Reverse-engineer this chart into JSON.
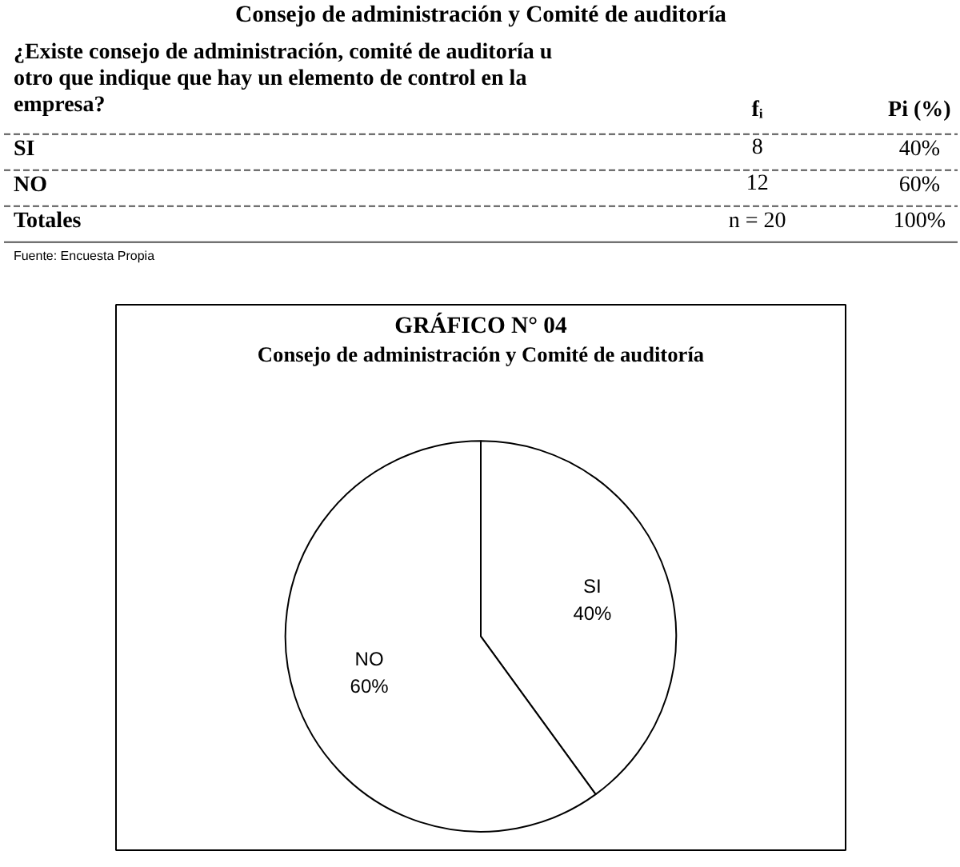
{
  "chart_data": [
    {
      "type": "other",
      "title": "Consejo de administración y Comité de auditoría",
      "annotations": [
        "¿Existe consejo de administración, comité de auditoría u otro que indique que hay un elemento de control en la empresa?",
        "fᵢ",
        "Pi (%)",
        "SI",
        "8",
        "40%",
        "NO",
        "12",
        "60%",
        "Totales",
        "n = 20",
        "100%",
        "Fuente: Encuesta Propia"
      ]
    },
    {
      "type": "pie",
      "title": "GRÁFICO N° 04",
      "subtitle": "Consejo de administración y Comité de auditoría",
      "categories": [
        "SI",
        "NO"
      ],
      "values": [
        40,
        60
      ],
      "colors": [
        "#ffffff",
        "#ffffff"
      ],
      "value_labels": [
        "40%",
        "60%"
      ]
    }
  ]
}
